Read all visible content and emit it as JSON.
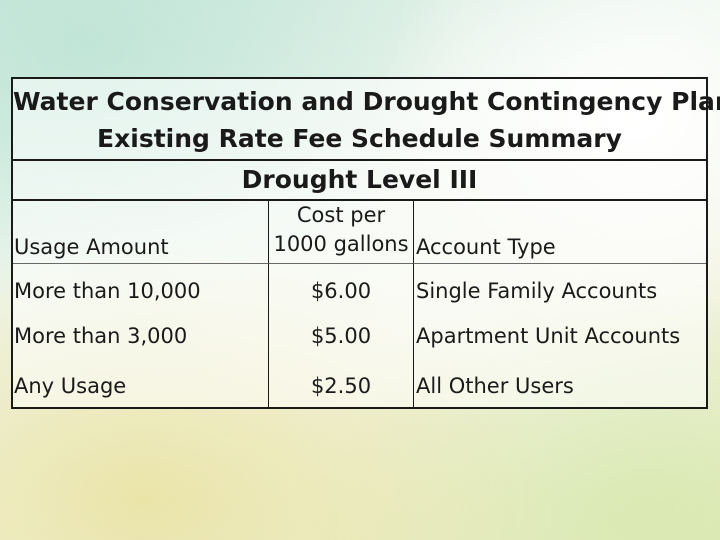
{
  "title": {
    "line1": "Water Conservation and Drought Contingency Plan",
    "line2": "Existing Rate Fee Schedule Summary",
    "line3": "Drought Level III"
  },
  "table": {
    "headers": {
      "usage": "Usage Amount",
      "cost_line1": "Cost per",
      "cost_line2": "1000 gallons",
      "account": "Account Type"
    },
    "rows": [
      {
        "usage": "More than 10,000",
        "cost": "$6.00",
        "account": "Single Family Accounts"
      },
      {
        "usage": "More than 3,000",
        "cost": "$5.00",
        "account": "Apartment Unit Accounts"
      },
      {
        "usage": "Any Usage",
        "cost": "$2.50",
        "account": "All Other Users"
      }
    ]
  }
}
